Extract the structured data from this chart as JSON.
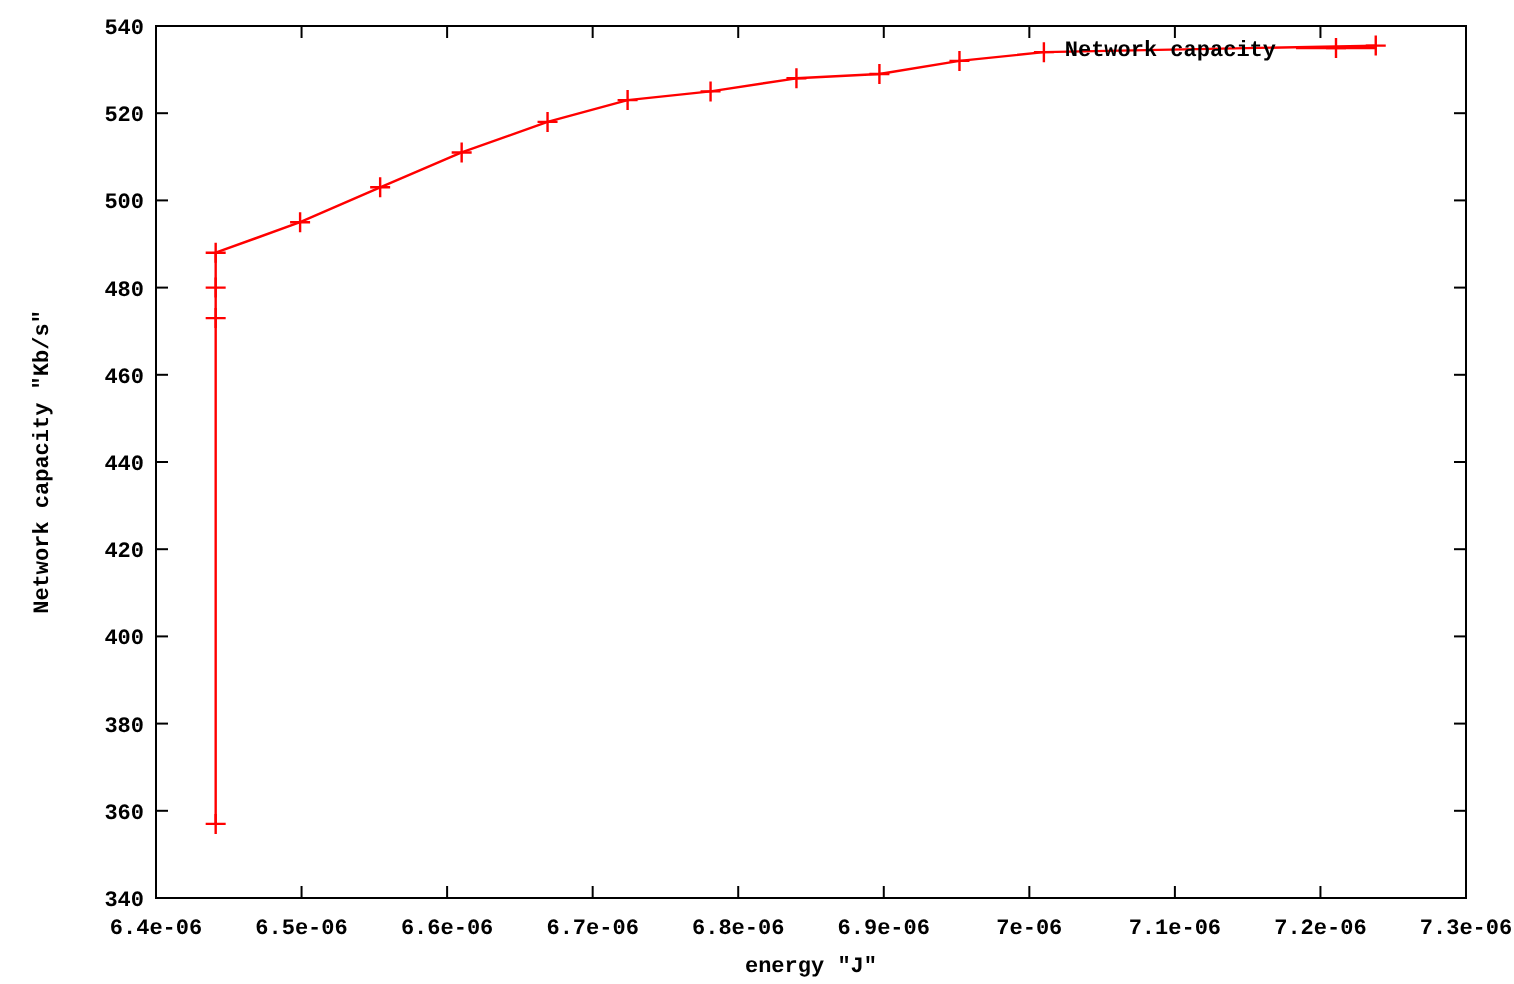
{
  "chart_data": {
    "type": "line",
    "xlabel": "energy \"J\"",
    "ylabel": "Network capacity \"Kb/s\"",
    "xlim": [
      6.4e-06,
      7.3e-06
    ],
    "xticks": [
      {
        "value": 6.4e-06,
        "label": "6.4e-06"
      },
      {
        "value": 6.5e-06,
        "label": "6.5e-06"
      },
      {
        "value": 6.6e-06,
        "label": "6.6e-06"
      },
      {
        "value": 6.7e-06,
        "label": "6.7e-06"
      },
      {
        "value": 6.8e-06,
        "label": "6.8e-06"
      },
      {
        "value": 6.9e-06,
        "label": "6.9e-06"
      },
      {
        "value": 7e-06,
        "label": "7e-06"
      },
      {
        "value": 7.1e-06,
        "label": "7.1e-06"
      },
      {
        "value": 7.2e-06,
        "label": "7.2e-06"
      },
      {
        "value": 7.3e-06,
        "label": "7.3e-06"
      }
    ],
    "ylim": [
      340,
      540
    ],
    "yticks": [
      340,
      360,
      380,
      400,
      420,
      440,
      460,
      480,
      500,
      520,
      540
    ],
    "grid": false,
    "legend": "top right",
    "marker": "cross",
    "line_style": "solid",
    "series": [
      {
        "name": "Network capacity",
        "color": "#ff0000",
        "x": [
          6.441e-06,
          6.441e-06,
          6.441e-06,
          6.441e-06,
          6.499e-06,
          6.554e-06,
          6.61e-06,
          6.669e-06,
          6.724e-06,
          6.781e-06,
          6.84e-06,
          6.897e-06,
          6.952e-06,
          7.01e-06,
          7.238e-06
        ],
        "values": [
          357,
          473,
          480,
          488,
          495,
          503,
          511,
          518,
          523,
          525,
          528,
          529,
          532,
          534,
          535.5
        ]
      }
    ]
  }
}
